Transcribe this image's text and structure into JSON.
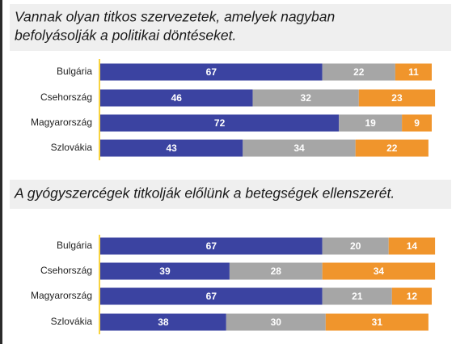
{
  "chart_data": [
    {
      "type": "stacked-bar",
      "title": [
        "Vannak olyan titkos szervezetek, amelyek nagyban",
        "befolyásolják a politikai döntéseket."
      ],
      "categories": [
        "Bulgária",
        "Csehország",
        "Magyarország",
        "Szlovákia"
      ],
      "series": [
        {
          "color": "#3b43a1",
          "values": [
            67,
            46,
            72,
            43
          ]
        },
        {
          "color": "#a6a6a6",
          "values": [
            22,
            32,
            19,
            34
          ]
        },
        {
          "color": "#f0952c",
          "values": [
            11,
            23,
            9,
            22
          ]
        }
      ]
    },
    {
      "type": "stacked-bar",
      "title": [
        "A gyógyszercégek titkolják előlünk a betegségek ellenszerét."
      ],
      "categories": [
        "Bulgária",
        "Csehország",
        "Magyarország",
        "Szlovákia"
      ],
      "series": [
        {
          "color": "#3b43a1",
          "values": [
            67,
            39,
            67,
            38
          ]
        },
        {
          "color": "#a6a6a6",
          "values": [
            20,
            28,
            21,
            30
          ]
        },
        {
          "color": "#f0952c",
          "values": [
            14,
            34,
            12,
            31
          ]
        }
      ]
    }
  ]
}
